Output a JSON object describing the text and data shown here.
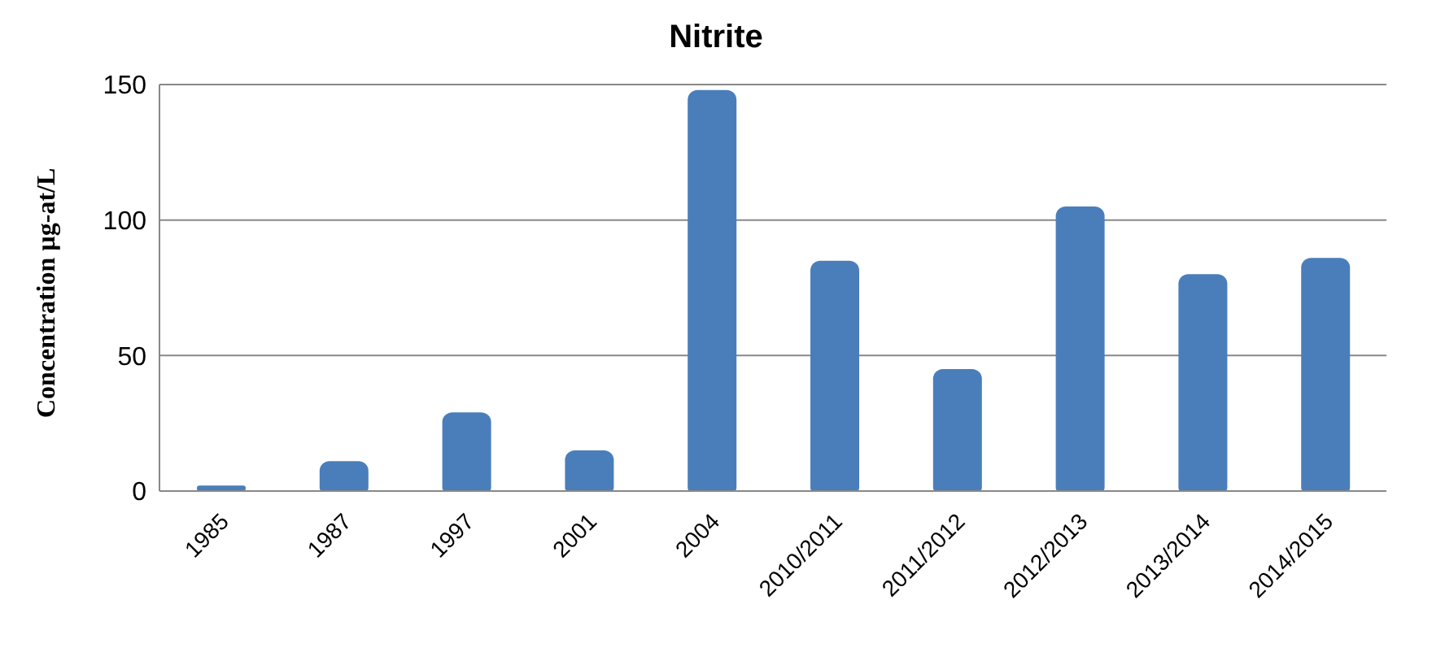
{
  "chart_data": {
    "type": "bar",
    "title": "Nitrite",
    "ylabel": "Concentration µg-at/L",
    "categories": [
      "1985",
      "1987",
      "1997",
      "2001",
      "2004",
      "2010/2011",
      "2011/2012",
      "2012/2013",
      "2013/2014",
      "2014/2015"
    ],
    "values": [
      2,
      11,
      29,
      15,
      148,
      85,
      45,
      105,
      80,
      86
    ],
    "color": "#4a7ebb",
    "ylim": [
      0,
      150
    ],
    "yticks": [
      0,
      50,
      100,
      150
    ],
    "grid": "y"
  }
}
